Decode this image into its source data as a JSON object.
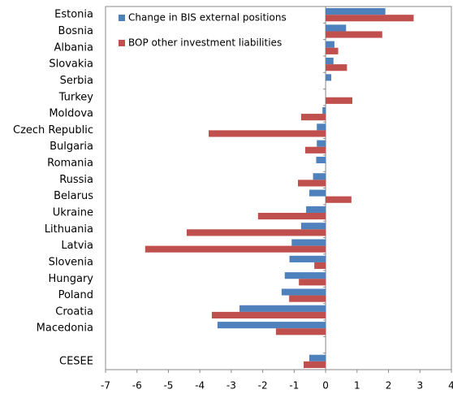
{
  "chart_data": {
    "type": "bar",
    "orientation": "horizontal",
    "categories": [
      "Estonia",
      "Bosnia",
      "Albania",
      "Slovakia",
      "Serbia",
      "Turkey",
      "Moldova",
      "Czech Republic",
      "Bulgaria",
      "Romania",
      "Russia",
      "Belarus",
      "Ukraine",
      "Lithuania",
      "Latvia",
      "Slovenia",
      "Hungary",
      "Poland",
      "Croatia",
      "Macedonia",
      null,
      "CESEE"
    ],
    "series": [
      {
        "name": "Change in BIS external positions",
        "color": "#4f81bd",
        "values": [
          1.9,
          0.65,
          0.28,
          0.25,
          0.18,
          0,
          -0.1,
          -0.28,
          -0.28,
          -0.3,
          -0.4,
          -0.52,
          -0.62,
          -0.78,
          -1.08,
          -1.15,
          -1.3,
          -1.4,
          -2.74,
          -3.44,
          null,
          -0.52
        ]
      },
      {
        "name": "BOP other investment liabilities",
        "color": "#c0504d",
        "values": [
          2.8,
          1.8,
          0.4,
          0.68,
          0,
          0.85,
          -0.78,
          -3.72,
          -0.65,
          0,
          -0.88,
          0.82,
          -2.15,
          -4.42,
          -5.74,
          -0.36,
          -0.85,
          -1.16,
          -3.62,
          -1.58,
          null,
          -0.7
        ]
      }
    ],
    "xlim": [
      -7,
      4
    ],
    "xticks": [
      -7,
      -6,
      -5,
      -4,
      -3,
      -2,
      -1,
      0,
      1,
      2,
      3,
      4
    ],
    "legend": "top-left",
    "grid": false
  }
}
